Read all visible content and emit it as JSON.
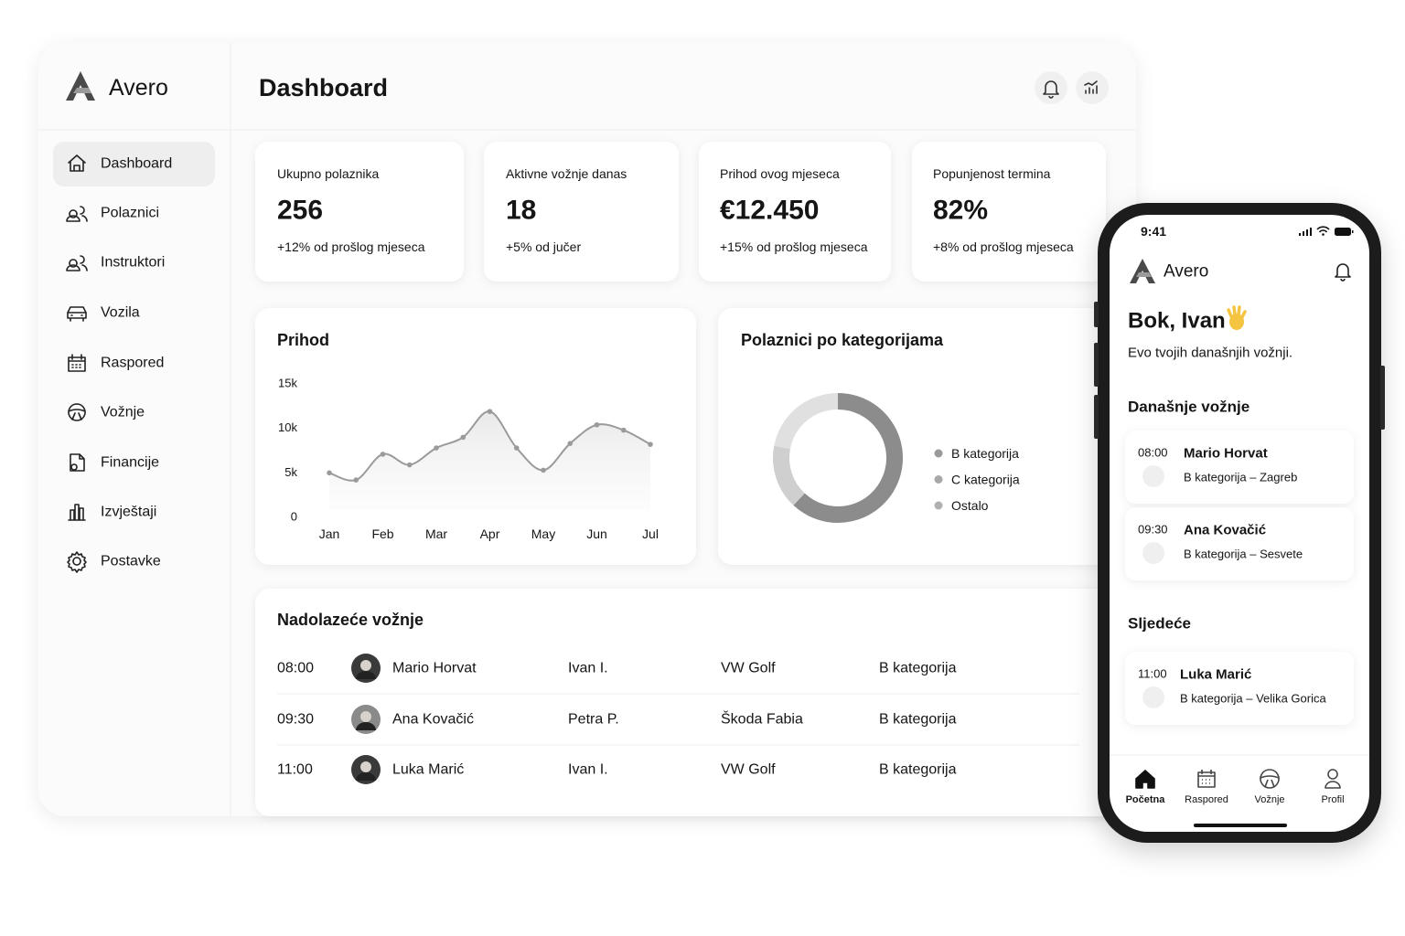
{
  "dashboard": {
    "brand": "Avero",
    "title": "Dashboard",
    "nav": [
      "Dashboard",
      "Polaznici",
      "Instruktori",
      "Vozila",
      "Raspored",
      "Vožnje",
      "Financije",
      "Izvještaji",
      "Postavke"
    ],
    "stats": [
      {
        "label": "Ukupno polaznika",
        "value": "256",
        "change": "+12% od prošlog mjeseca"
      },
      {
        "label": "Aktivne vožnje danas",
        "value": "18",
        "change": "+5% od jučer"
      },
      {
        "label": "Prihod ovog mjeseca",
        "value": "€12.450",
        "change": "+15% od prošlog mjeseca"
      },
      {
        "label": "Popunjenost termina",
        "value": "82%",
        "change": "+8% od prošlog mjeseca"
      }
    ],
    "revenue_chart": {
      "type": "line",
      "title": "Prihod",
      "x": [
        "Jan",
        null,
        "Feb",
        null,
        "Mar",
        null,
        "Apr",
        null,
        "May",
        null,
        "Jun",
        null,
        "Jul"
      ],
      "values": [
        4900,
        4100,
        7000,
        5800,
        7700,
        8900,
        11800,
        7700,
        5200,
        8200,
        10300,
        9700,
        8100
      ],
      "color": "#9a9a9a",
      "ylim": [
        0,
        15000
      ],
      "yticks": [
        0,
        {
          "value": 5000,
          "label": "5k"
        },
        {
          "value": 10000,
          "label": "10k"
        },
        {
          "value": 15000,
          "label": "15k"
        }
      ]
    },
    "category_chart": {
      "type": "donut",
      "title": "Polaznici po kategorijama",
      "categories": [
        "B kategorija",
        "C kategorija",
        "Ostalo"
      ],
      "values": [
        62,
        16,
        22
      ],
      "colors": [
        "#8c8c8c",
        "#cfcfcf",
        "#e0e0e0"
      ]
    },
    "upcoming": {
      "title": "Nadolazeće vožnje",
      "rows": [
        [
          "08:00",
          "Mario Horvat",
          "Ivan I.",
          "VW Golf",
          "B kategorija"
        ],
        [
          "09:30",
          "Ana Kovačić",
          "Petra P.",
          "Škoda Fabia",
          "B kategorija"
        ],
        [
          "11:00",
          "Luka Marić",
          "Ivan I.",
          "VW Golf",
          "B kategorija"
        ]
      ]
    }
  },
  "mobile": {
    "time": "9:41",
    "brand": "Avero",
    "greeting": "Bok, Ivan",
    "subtitle": "Evo tvojih današnjih vožnji.",
    "today_title": "Današnje vožnje",
    "today": [
      {
        "time": "08:00",
        "name": "Mario Horvat",
        "detail": "B kategorija – Zagreb"
      },
      {
        "time": "09:30",
        "name": "Ana Kovačić",
        "detail": "B kategorija – Sesvete"
      }
    ],
    "next_title": "Sljedeće",
    "next": [
      {
        "time": "11:00",
        "name": "Luka Marić",
        "detail": "B kategorija – Velika Gorica"
      }
    ],
    "tabs": [
      "Početna",
      "Raspored",
      "Vožnje",
      "Profil"
    ]
  }
}
